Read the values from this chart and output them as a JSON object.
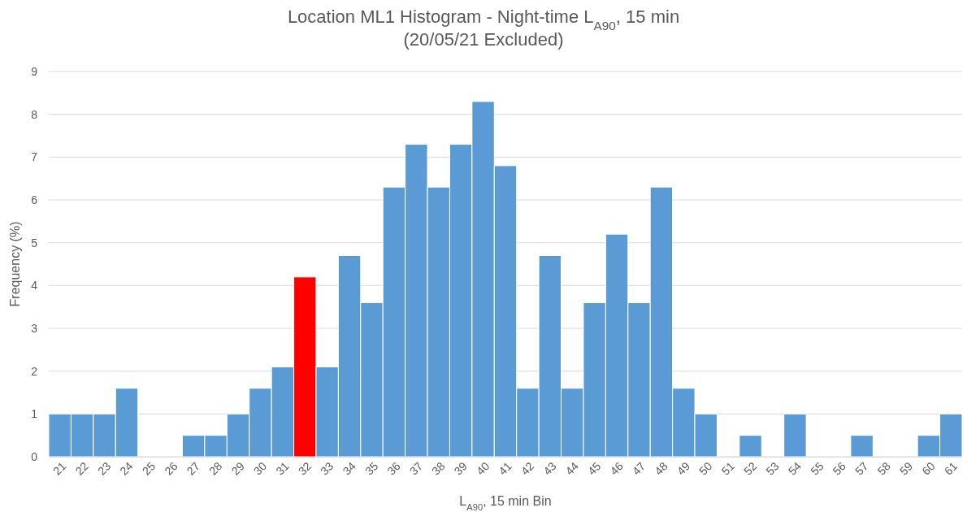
{
  "chart_data": {
    "type": "bar",
    "title": "Location ML1 Histogram - Night-time L$_{A90}$, 15 min\n(20/05/21 Excluded)",
    "xlabel": "L$_{A90}$, 15 min Bin",
    "ylabel": "Frequency (%)",
    "categories": [
      "21",
      "22",
      "23",
      "24",
      "25",
      "26",
      "27",
      "28",
      "29",
      "30",
      "31",
      "32",
      "33",
      "34",
      "35",
      "36",
      "37",
      "38",
      "39",
      "40",
      "41",
      "42",
      "43",
      "44",
      "45",
      "46",
      "47",
      "48",
      "49",
      "50",
      "51",
      "52",
      "53",
      "54",
      "55",
      "56",
      "57",
      "58",
      "59",
      "60",
      "61"
    ],
    "values": [
      1,
      1,
      1,
      1.6,
      0,
      0,
      0.5,
      0.5,
      1,
      1.6,
      2.1,
      4.2,
      2.1,
      4.7,
      3.6,
      6.3,
      7.3,
      6.3,
      7.3,
      8.3,
      6.8,
      1.6,
      4.7,
      1.6,
      3.6,
      5.2,
      3.6,
      6.3,
      1.6,
      1,
      0,
      0.5,
      0,
      1,
      0,
      0,
      0.5,
      0,
      0,
      0.5,
      1
    ],
    "colors": [
      "#5b9bd5",
      "#5b9bd5",
      "#5b9bd5",
      "#5b9bd5",
      "#5b9bd5",
      "#5b9bd5",
      "#5b9bd5",
      "#5b9bd5",
      "#5b9bd5",
      "#5b9bd5",
      "#5b9bd5",
      "#ff0000",
      "#5b9bd5",
      "#5b9bd5",
      "#5b9bd5",
      "#5b9bd5",
      "#5b9bd5",
      "#5b9bd5",
      "#5b9bd5",
      "#5b9bd5",
      "#5b9bd5",
      "#5b9bd5",
      "#5b9bd5",
      "#5b9bd5",
      "#5b9bd5",
      "#5b9bd5",
      "#5b9bd5",
      "#5b9bd5",
      "#5b9bd5",
      "#5b9bd5",
      "#5b9bd5",
      "#5b9bd5",
      "#5b9bd5",
      "#5b9bd5",
      "#5b9bd5",
      "#5b9bd5",
      "#5b9bd5",
      "#5b9bd5",
      "#5b9bd5",
      "#5b9bd5",
      "#5b9bd5"
    ],
    "ylim": [
      0,
      9
    ],
    "yticks": [
      0,
      1,
      2,
      3,
      4,
      5,
      6,
      7,
      8,
      9
    ],
    "grid": "y"
  }
}
